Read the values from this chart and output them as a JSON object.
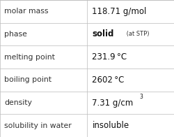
{
  "rows": [
    {
      "label": "molar mass",
      "value": "118.71 g/mol"
    },
    {
      "label": "phase",
      "value": "phase_special"
    },
    {
      "label": "melting point",
      "value": "231.9 °C"
    },
    {
      "label": "boiling point",
      "value": "2602 °C"
    },
    {
      "label": "density",
      "value": "density_special"
    },
    {
      "label": "solubility in water",
      "value": "insoluble"
    }
  ],
  "n_rows": 6,
  "col_split": 0.5,
  "bg_color": "#f8f8f8",
  "cell_bg": "#ffffff",
  "line_color": "#bbbbbb",
  "label_font_size": 7.8,
  "value_font_size": 8.5,
  "label_color": "#333333",
  "value_color": "#111111",
  "phase_bold": "solid",
  "phase_small": " (at STP)",
  "phase_small_size": 6.0,
  "density_base": "7.31 g/cm",
  "density_super": "3",
  "density_super_size": 5.5
}
